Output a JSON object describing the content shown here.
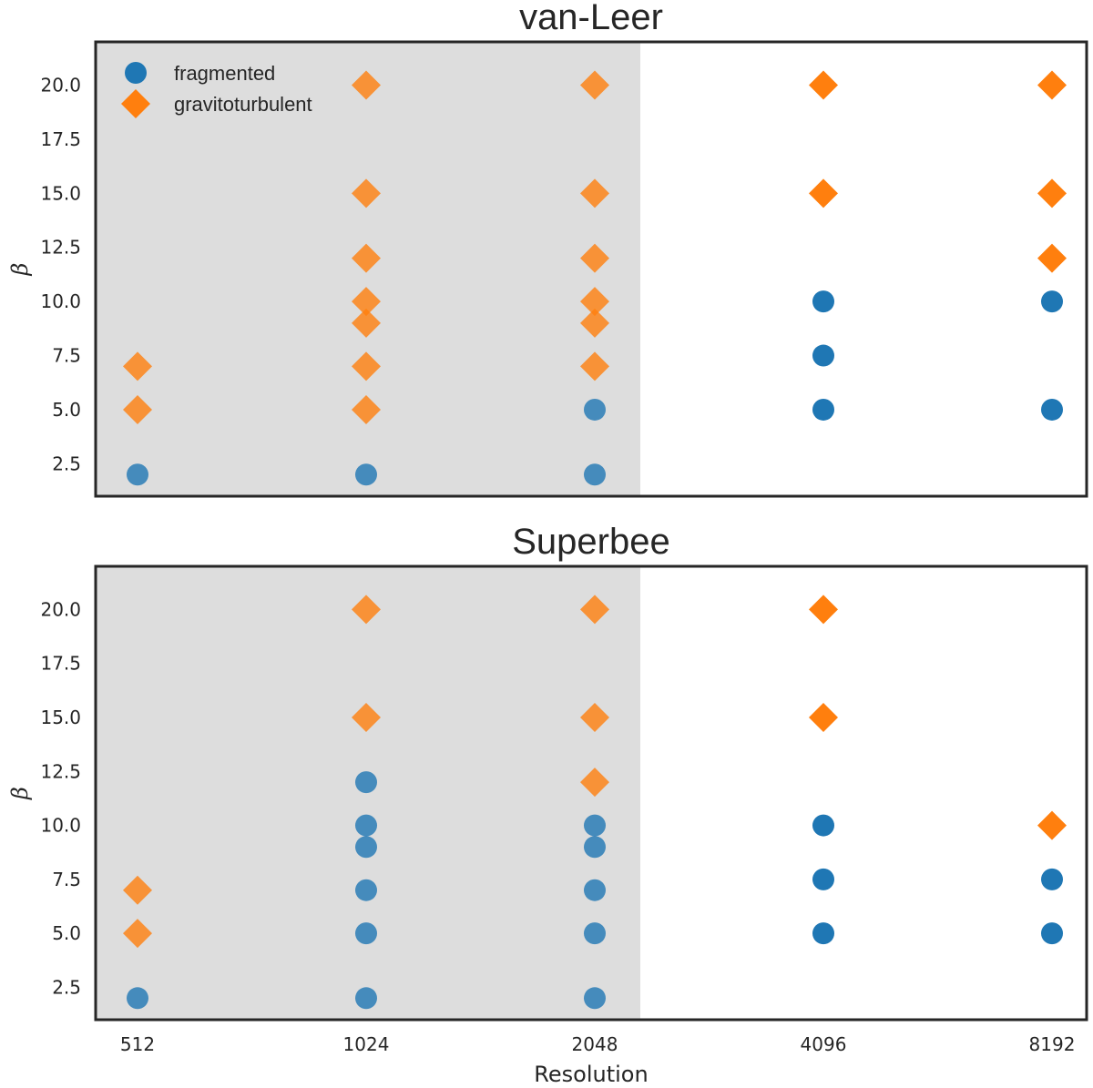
{
  "chart_data": [
    {
      "type": "scatter",
      "title": "van-Leer",
      "xlabel": "",
      "ylabel": "β",
      "x_categories": [
        "512",
        "1024",
        "2048",
        "4096",
        "8192"
      ],
      "yticks": [
        "2.5",
        "5.0",
        "7.5",
        "10.0",
        "12.5",
        "15.0",
        "17.5",
        "20.0"
      ],
      "ylim": [
        1.0,
        22.0
      ],
      "shaded_region": {
        "from_category": "512",
        "to_category": "2048",
        "color": "#dddddd"
      },
      "legend": {
        "position": "top-left",
        "entries": [
          "fragmented",
          "gravitoturbulent"
        ]
      },
      "series": [
        {
          "name": "fragmented",
          "marker": "circle",
          "color": "#1f77b4",
          "points": [
            {
              "x": "512",
              "y": 2
            },
            {
              "x": "1024",
              "y": 2
            },
            {
              "x": "2048",
              "y": 2
            },
            {
              "x": "2048",
              "y": 5
            },
            {
              "x": "4096",
              "y": 5
            },
            {
              "x": "4096",
              "y": 7.5
            },
            {
              "x": "4096",
              "y": 10
            },
            {
              "x": "8192",
              "y": 5
            },
            {
              "x": "8192",
              "y": 10
            }
          ]
        },
        {
          "name": "gravitoturbulent",
          "marker": "diamond",
          "color": "#ff7f0e",
          "points": [
            {
              "x": "512",
              "y": 5
            },
            {
              "x": "512",
              "y": 7
            },
            {
              "x": "1024",
              "y": 5
            },
            {
              "x": "1024",
              "y": 7
            },
            {
              "x": "1024",
              "y": 9
            },
            {
              "x": "1024",
              "y": 10
            },
            {
              "x": "1024",
              "y": 12
            },
            {
              "x": "1024",
              "y": 15
            },
            {
              "x": "1024",
              "y": 20
            },
            {
              "x": "2048",
              "y": 7
            },
            {
              "x": "2048",
              "y": 9
            },
            {
              "x": "2048",
              "y": 10
            },
            {
              "x": "2048",
              "y": 12
            },
            {
              "x": "2048",
              "y": 15
            },
            {
              "x": "2048",
              "y": 20
            },
            {
              "x": "4096",
              "y": 15
            },
            {
              "x": "4096",
              "y": 20
            },
            {
              "x": "8192",
              "y": 12
            },
            {
              "x": "8192",
              "y": 15
            },
            {
              "x": "8192",
              "y": 20
            }
          ]
        }
      ]
    },
    {
      "type": "scatter",
      "title": "Superbee",
      "xlabel": "Resolution",
      "ylabel": "β",
      "x_categories": [
        "512",
        "1024",
        "2048",
        "4096",
        "8192"
      ],
      "yticks": [
        "2.5",
        "5.0",
        "7.5",
        "10.0",
        "12.5",
        "15.0",
        "17.5",
        "20.0"
      ],
      "ylim": [
        1.0,
        22.0
      ],
      "shaded_region": {
        "from_category": "512",
        "to_category": "2048",
        "color": "#dddddd"
      },
      "series": [
        {
          "name": "fragmented",
          "marker": "circle",
          "color": "#1f77b4",
          "points": [
            {
              "x": "512",
              "y": 2
            },
            {
              "x": "1024",
              "y": 2
            },
            {
              "x": "1024",
              "y": 5
            },
            {
              "x": "1024",
              "y": 7
            },
            {
              "x": "1024",
              "y": 9
            },
            {
              "x": "1024",
              "y": 10
            },
            {
              "x": "1024",
              "y": 12
            },
            {
              "x": "2048",
              "y": 2
            },
            {
              "x": "2048",
              "y": 5
            },
            {
              "x": "2048",
              "y": 7
            },
            {
              "x": "2048",
              "y": 9
            },
            {
              "x": "2048",
              "y": 10
            },
            {
              "x": "4096",
              "y": 5
            },
            {
              "x": "4096",
              "y": 7.5
            },
            {
              "x": "4096",
              "y": 10
            },
            {
              "x": "8192",
              "y": 5
            },
            {
              "x": "8192",
              "y": 7.5
            }
          ]
        },
        {
          "name": "gravitoturbulent",
          "marker": "diamond",
          "color": "#ff7f0e",
          "points": [
            {
              "x": "512",
              "y": 5
            },
            {
              "x": "512",
              "y": 7
            },
            {
              "x": "1024",
              "y": 15
            },
            {
              "x": "1024",
              "y": 20
            },
            {
              "x": "2048",
              "y": 12
            },
            {
              "x": "2048",
              "y": 15
            },
            {
              "x": "2048",
              "y": 20
            },
            {
              "x": "4096",
              "y": 15
            },
            {
              "x": "4096",
              "y": 20
            },
            {
              "x": "8192",
              "y": 10
            }
          ]
        }
      ]
    }
  ]
}
